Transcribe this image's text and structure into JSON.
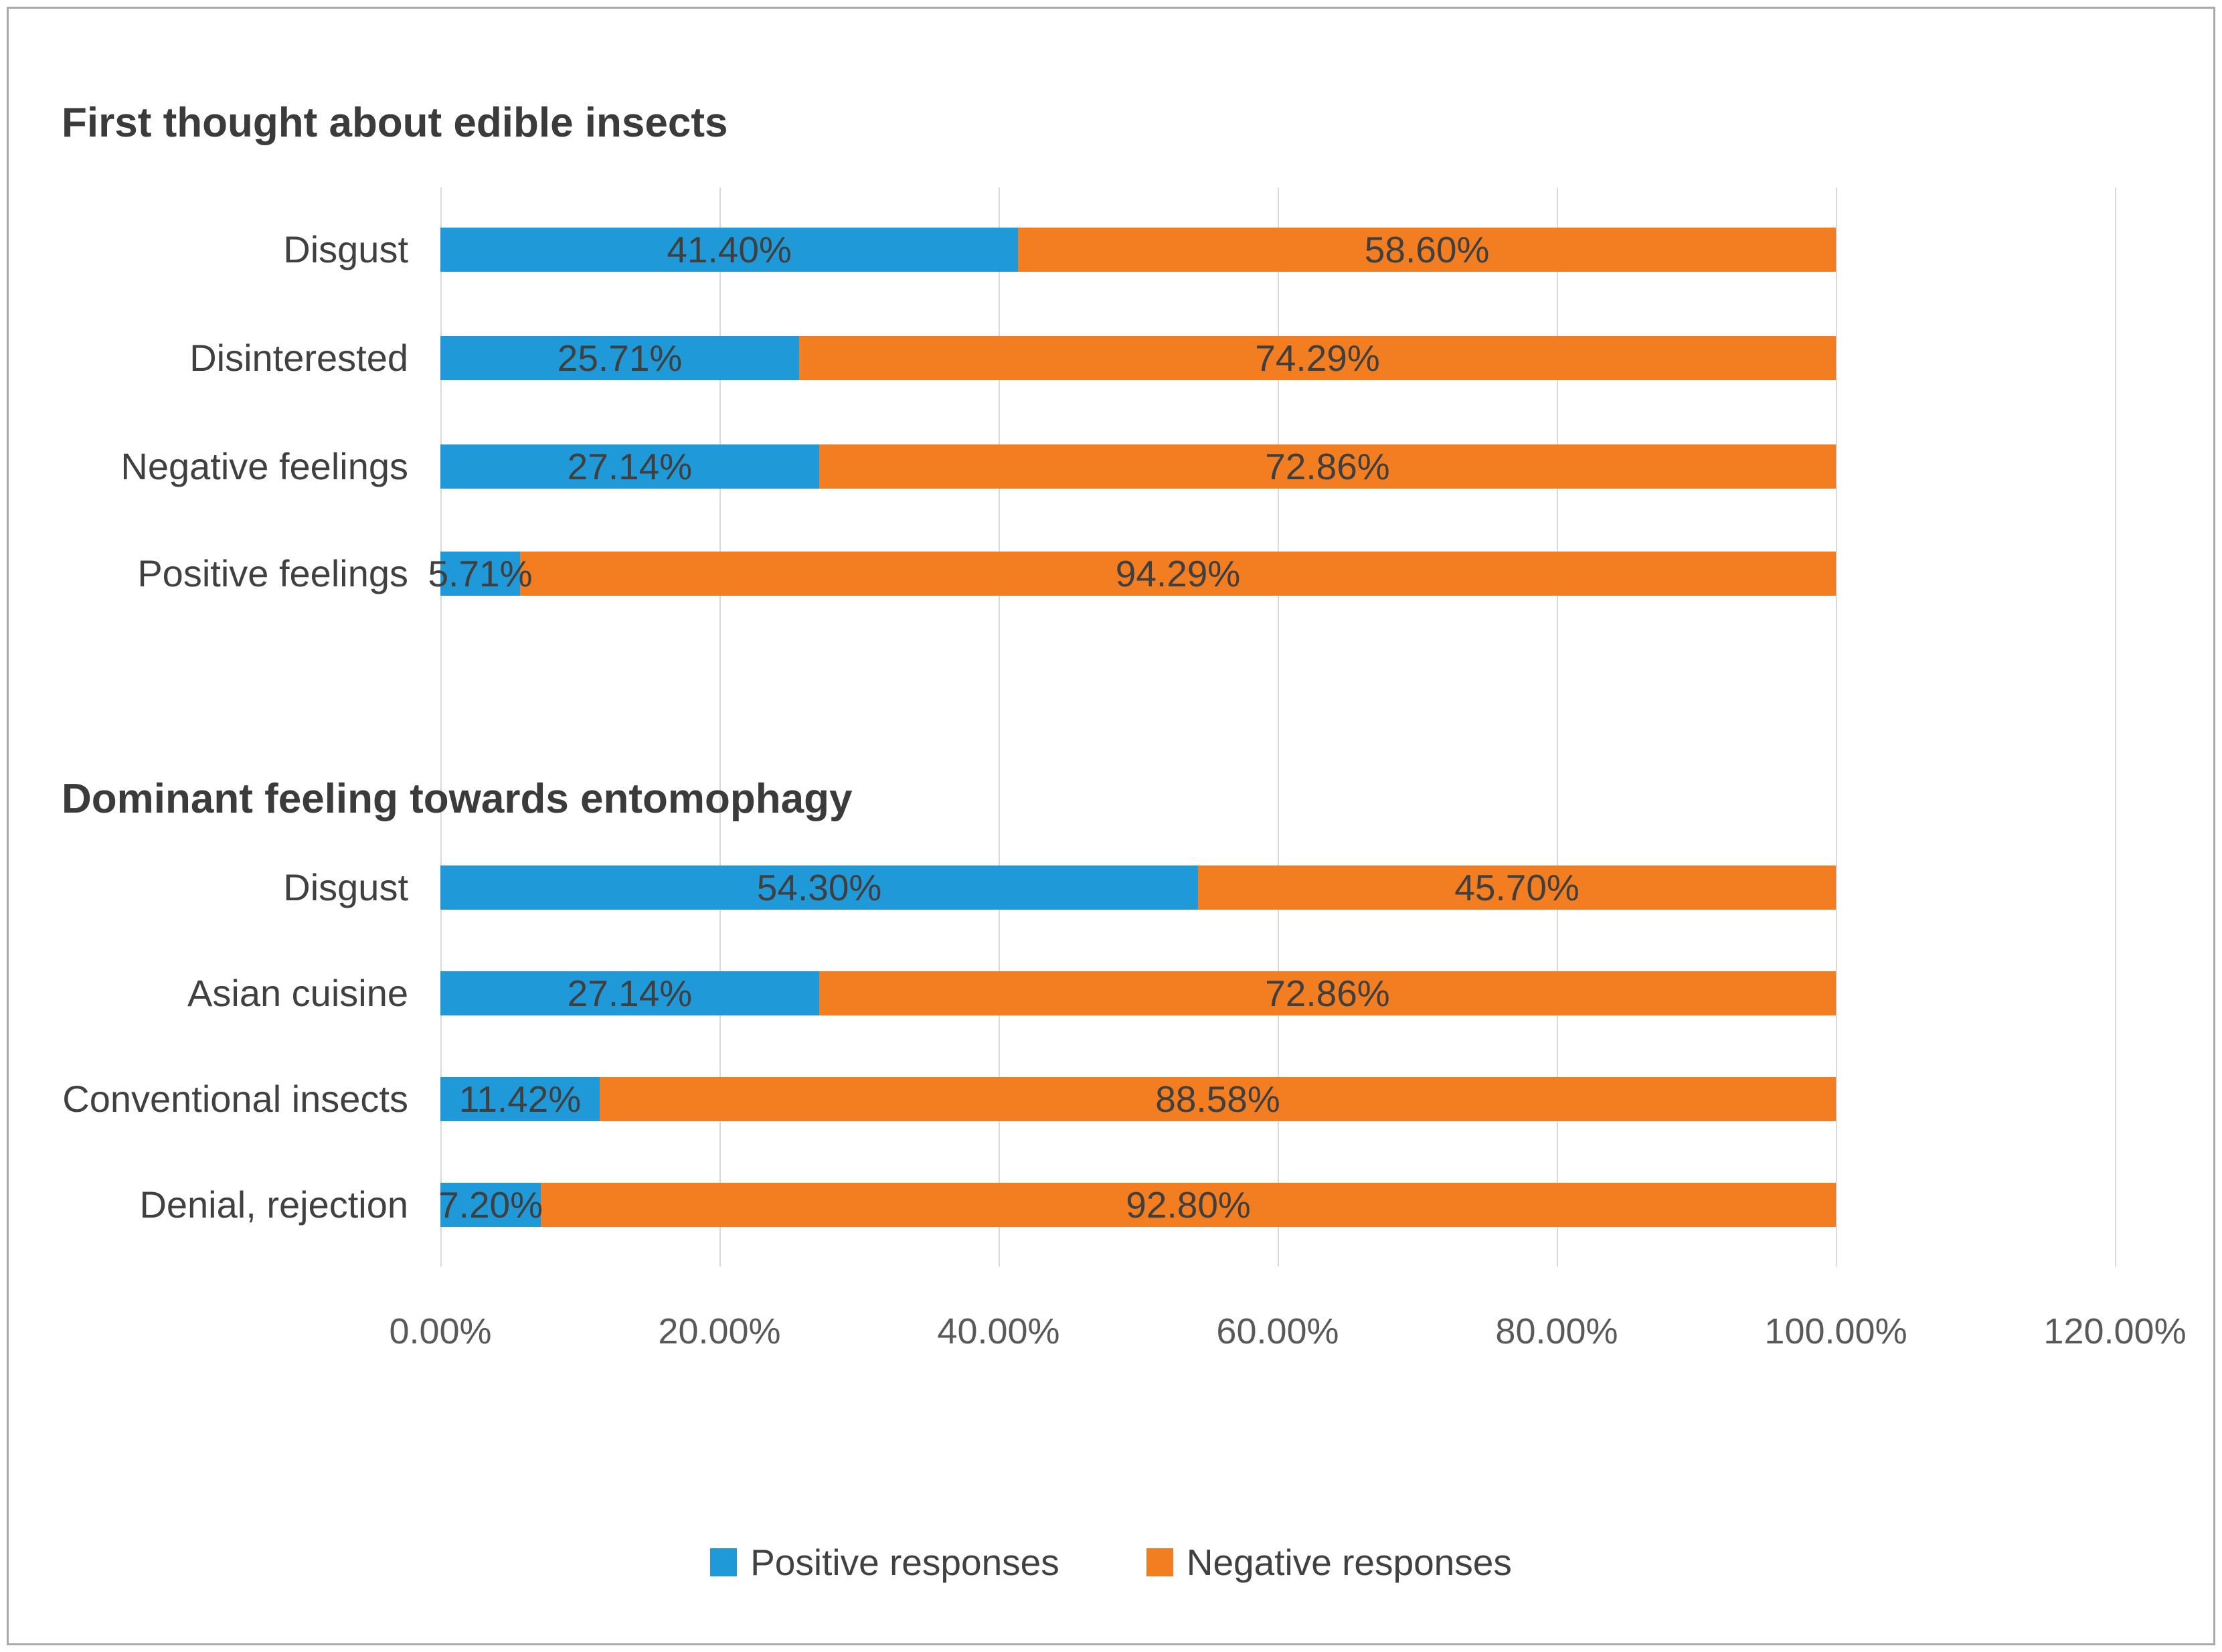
{
  "chart_data": {
    "type": "bar",
    "orientation": "horizontal-stacked",
    "units": "percent",
    "groups": [
      {
        "title": "First thought about edible insects",
        "categories": [
          "Disgust",
          "Disinterested",
          "Negative feelings",
          "Positive feelings"
        ],
        "series": [
          {
            "name": "Positive responses",
            "values": [
              41.4,
              25.71,
              27.14,
              5.71
            ]
          },
          {
            "name": "Negative responses",
            "values": [
              58.6,
              74.29,
              72.86,
              94.29
            ]
          }
        ],
        "bar_labels": [
          [
            "41.40%",
            "58.60%"
          ],
          [
            "25.71%",
            "74.29%"
          ],
          [
            "27.14%",
            "72.86%"
          ],
          [
            "5.71%",
            "94.29%"
          ]
        ]
      },
      {
        "title": "Dominant feeling towards entomophagy",
        "categories": [
          "Disgust",
          "Asian cuisine",
          "Conventional insects",
          "Denial, rejection"
        ],
        "series": [
          {
            "name": "Positive responses",
            "values": [
              54.3,
              27.14,
              11.42,
              7.2
            ]
          },
          {
            "name": "Negative responses",
            "values": [
              45.7,
              72.86,
              88.58,
              92.8
            ]
          }
        ],
        "bar_labels": [
          [
            "54.30%",
            "45.70%"
          ],
          [
            "27.14%",
            "72.86%"
          ],
          [
            "11.42%",
            "88.58%"
          ],
          [
            "7.20%",
            "92.80%"
          ]
        ]
      }
    ],
    "x_axis": {
      "tick_labels": [
        "0.00%",
        "20.00%",
        "40.00%",
        "60.00%",
        "80.00%",
        "100.00%",
        "120.00%"
      ],
      "min": 0,
      "max": 120,
      "grid": true
    },
    "legend": [
      {
        "label": "Positive responses",
        "color": "#2099d8"
      },
      {
        "label": "Negative responses",
        "color": "#f37d21"
      }
    ],
    "colors": {
      "positive_series": "#2099d8",
      "negative_series": "#f37d21",
      "bar_label_text": "#3f3f3f",
      "category_text": "#404040",
      "title_text": "#3b3b3b",
      "gridline": "#d9d9d9",
      "axis_text": "#595959",
      "frame_border": "#a9a9a9"
    }
  }
}
